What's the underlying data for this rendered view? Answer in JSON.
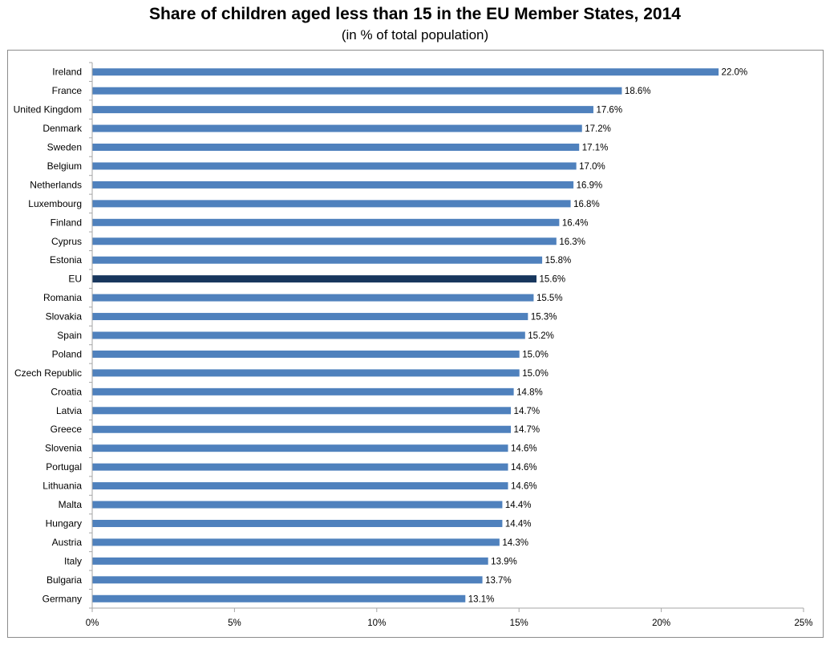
{
  "chart_data": {
    "type": "bar",
    "orientation": "horizontal",
    "title": "Share of children aged less than 15 in the EU Member States, 2014",
    "subtitle": "(in % of total population)",
    "categories": [
      "Ireland",
      "France",
      "United Kingdom",
      "Denmark",
      "Sweden",
      "Belgium",
      "Netherlands",
      "Luxembourg",
      "Finland",
      "Cyprus",
      "Estonia",
      "EU",
      "Romania",
      "Slovakia",
      "Spain",
      "Poland",
      "Czech Republic",
      "Croatia",
      "Latvia",
      "Greece",
      "Slovenia",
      "Portugal",
      "Lithuania",
      "Malta",
      "Hungary",
      "Austria",
      "Italy",
      "Bulgaria",
      "Germany"
    ],
    "values": [
      22.0,
      18.6,
      17.6,
      17.2,
      17.1,
      17.0,
      16.9,
      16.8,
      16.4,
      16.3,
      15.8,
      15.6,
      15.5,
      15.3,
      15.2,
      15.0,
      15.0,
      14.8,
      14.7,
      14.7,
      14.6,
      14.6,
      14.6,
      14.4,
      14.4,
      14.3,
      13.9,
      13.7,
      13.1
    ],
    "value_labels": [
      "22.0%",
      "18.6%",
      "17.6%",
      "17.2%",
      "17.1%",
      "17.0%",
      "16.9%",
      "16.8%",
      "16.4%",
      "16.3%",
      "15.8%",
      "15.6%",
      "15.5%",
      "15.3%",
      "15.2%",
      "15.0%",
      "15.0%",
      "14.8%",
      "14.7%",
      "14.7%",
      "14.6%",
      "14.6%",
      "14.6%",
      "14.4%",
      "14.4%",
      "14.3%",
      "13.9%",
      "13.7%",
      "13.1%"
    ],
    "highlight_category": "EU",
    "xlim": [
      0,
      25
    ],
    "x_ticks": [
      0,
      5,
      10,
      15,
      20,
      25
    ],
    "x_tick_labels": [
      "0%",
      "5%",
      "10%",
      "15%",
      "20%",
      "25%"
    ],
    "xlabel": "",
    "ylabel": "",
    "grid": false,
    "legend": "none",
    "colors": {
      "bar": "#4f81bd",
      "highlight": "#17365d",
      "axis": "#a6a6a6"
    }
  }
}
